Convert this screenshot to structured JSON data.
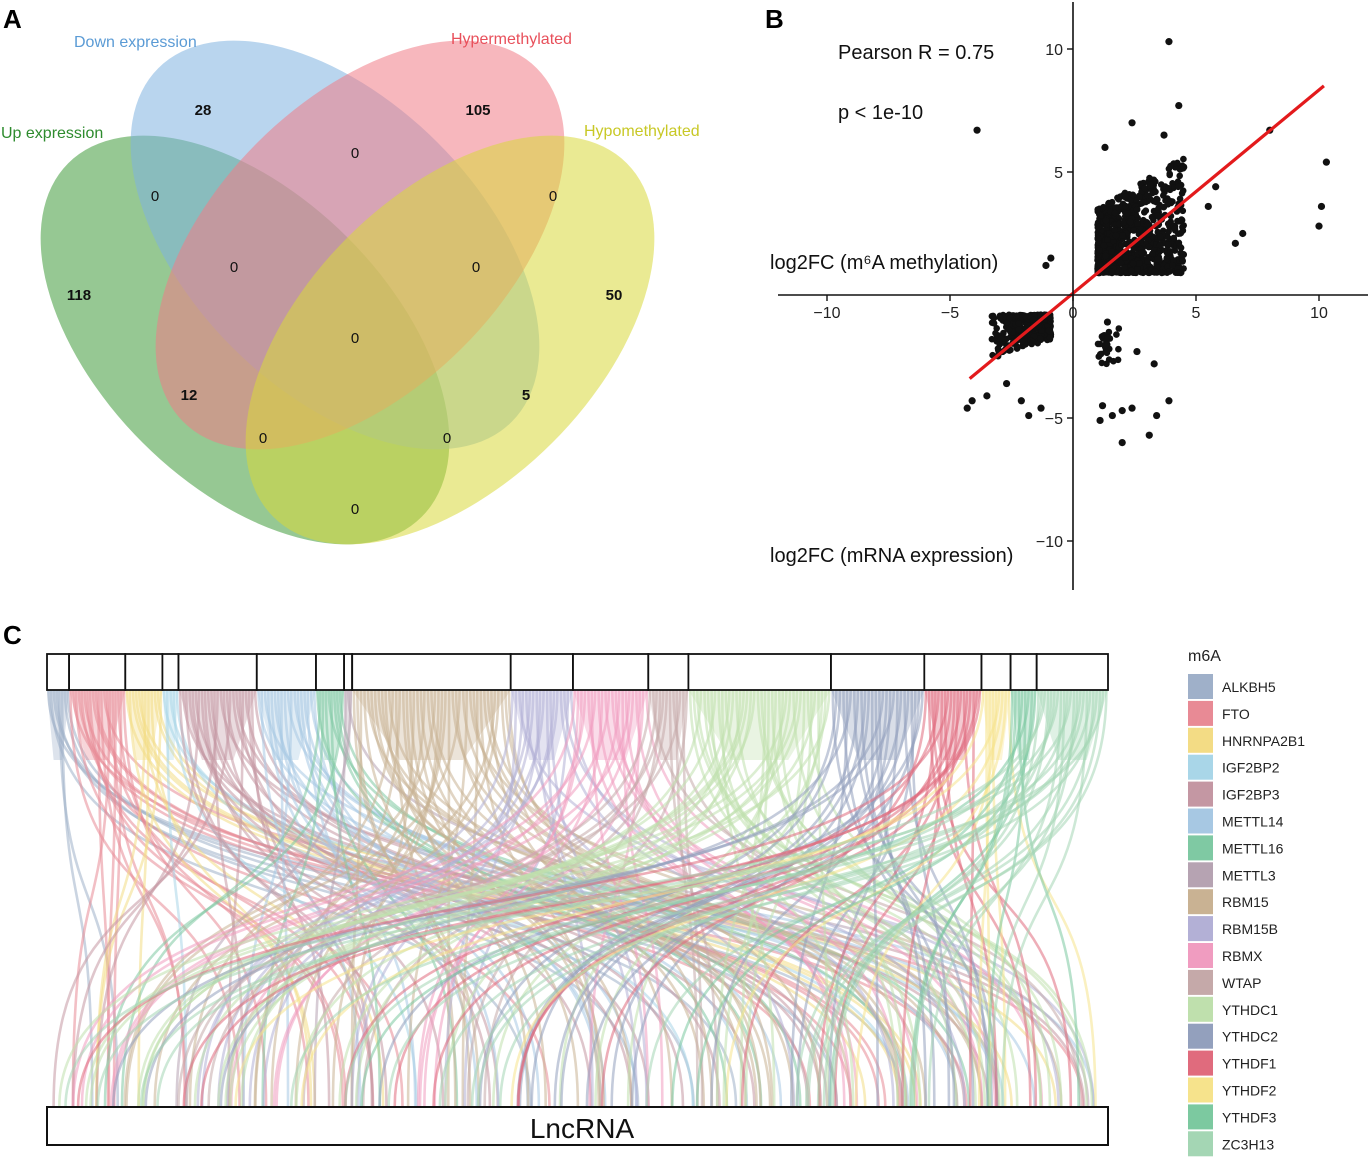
{
  "panels": {
    "a": "A",
    "b": "B",
    "c": "C"
  },
  "venn": {
    "sets": [
      {
        "name": "Up expression",
        "color": "#2e8b2e",
        "fill": "#3f9a3a"
      },
      {
        "name": "Down expression",
        "color": "#5b9bd5",
        "fill": "#7fb3e0"
      },
      {
        "name": "Hypermethylated",
        "color": "#e8505b",
        "fill": "#f07c86"
      },
      {
        "name": "Hypomethylated",
        "color": "#c8c826",
        "fill": "#d9d93a"
      }
    ],
    "regions": [
      {
        "key": "down_only",
        "value": "28",
        "bold": true
      },
      {
        "key": "hyper_only",
        "value": "105",
        "bold": true
      },
      {
        "key": "up_only",
        "value": "118",
        "bold": true
      },
      {
        "key": "hypo_only",
        "value": "50",
        "bold": true
      },
      {
        "key": "down_hyper",
        "value": "0",
        "bold": false
      },
      {
        "key": "up_down",
        "value": "0",
        "bold": false
      },
      {
        "key": "hyper_hypo",
        "value": "0",
        "bold": false
      },
      {
        "key": "up_down_hyper",
        "value": "0",
        "bold": false
      },
      {
        "key": "down_hyper_hypo",
        "value": "0",
        "bold": false
      },
      {
        "key": "all_four",
        "value": "0",
        "bold": false
      },
      {
        "key": "up_hyper",
        "value": "12",
        "bold": true
      },
      {
        "key": "down_hypo",
        "value": "5",
        "bold": true
      },
      {
        "key": "up_hyper_hypo",
        "value": "0",
        "bold": false
      },
      {
        "key": "up_down_hypo",
        "value": "0",
        "bold": false
      },
      {
        "key": "up_hypo",
        "value": "0",
        "bold": false
      }
    ]
  },
  "chart_data": [
    {
      "type": "scatter",
      "panel": "B",
      "title": "",
      "annotations": [
        "Pearson R = 0.75",
        "p < 1e-10"
      ],
      "xlabel": "log2FC (mRNA expression)",
      "ylabel": "log2FC (m⁶A methylation)",
      "xlim": [
        -12,
        12
      ],
      "ylim": [
        -12,
        12
      ],
      "xticks": [
        -10,
        -5,
        0,
        5,
        10
      ],
      "yticks": [
        10,
        5,
        -5,
        -10
      ],
      "xtick_labels": [
        "−10",
        "−5",
        "0",
        "5",
        "10"
      ],
      "ytick_labels": [
        "10",
        "5",
        "−5",
        "−10"
      ],
      "point_color": "#111111",
      "fit_color": "#e31a1c",
      "fit_line": {
        "x": [
          -4.2,
          10.2
        ],
        "y": [
          -3.4,
          8.5
        ]
      },
      "outliers": [
        {
          "x": 3.9,
          "y": 10.3
        },
        {
          "x": -3.9,
          "y": 6.7
        },
        {
          "x": 10.3,
          "y": 5.4
        },
        {
          "x": 10.1,
          "y": 3.6
        },
        {
          "x": 10.0,
          "y": 2.8
        },
        {
          "x": 8.0,
          "y": 6.7
        },
        {
          "x": 4.3,
          "y": 7.7
        },
        {
          "x": -0.9,
          "y": 1.5
        },
        {
          "x": -1.1,
          "y": 1.2
        },
        {
          "x": 1.2,
          "y": -4.5
        },
        {
          "x": 1.6,
          "y": -4.9
        },
        {
          "x": 2.0,
          "y": -4.7
        },
        {
          "x": 2.4,
          "y": -4.6
        },
        {
          "x": 3.1,
          "y": -5.7
        },
        {
          "x": 3.4,
          "y": -4.9
        },
        {
          "x": 3.9,
          "y": -4.3
        },
        {
          "x": 2.0,
          "y": -6.0
        },
        {
          "x": 1.1,
          "y": -5.1
        },
        {
          "x": 2.6,
          "y": -2.3
        },
        {
          "x": 3.3,
          "y": -2.8
        },
        {
          "x": 1.4,
          "y": -1.1
        },
        {
          "x": -4.1,
          "y": -4.3
        },
        {
          "x": -4.3,
          "y": -4.6
        },
        {
          "x": -3.5,
          "y": -4.1
        },
        {
          "x": -2.1,
          "y": -4.3
        },
        {
          "x": -1.8,
          "y": -4.9
        },
        {
          "x": -1.3,
          "y": -4.6
        },
        {
          "x": -2.7,
          "y": -3.6
        },
        {
          "x": 6.9,
          "y": 2.5
        },
        {
          "x": 5.8,
          "y": 4.4
        },
        {
          "x": 5.5,
          "y": 3.6
        },
        {
          "x": 4.5,
          "y": 5.2
        },
        {
          "x": 3.7,
          "y": 6.5
        },
        {
          "x": 2.4,
          "y": 7.0
        },
        {
          "x": 1.3,
          "y": 6.0
        },
        {
          "x": 6.6,
          "y": 2.1
        }
      ],
      "clusters": [
        {
          "count": 900,
          "x": [
            1.0,
            4.5
          ],
          "y": [
            0.9,
            5.6
          ],
          "seed": 11,
          "skew": 0.6
        },
        {
          "count": 260,
          "x": [
            -3.3,
            -0.9
          ],
          "y": [
            -2.6,
            -0.8
          ],
          "seed": 23,
          "skew": 0.3
        },
        {
          "count": 30,
          "x": [
            1.0,
            2.1
          ],
          "y": [
            -2.8,
            -1.0
          ],
          "seed": 37,
          "skew": 0.0
        }
      ]
    },
    {
      "type": "alluvial",
      "panel": "C",
      "bottom_label": "LncRNA",
      "legend_title": "m6A",
      "categories": [
        "ALKBH5",
        "FTO",
        "HNRNPA2B1",
        "IGF2BP2",
        "IGF2BP3",
        "METTL14",
        "METTL16",
        "METTL3",
        "RBM15",
        "RBM15B",
        "RBMX",
        "WTAP",
        "YTHDC1",
        "YTHDC2",
        "YTHDF1",
        "YTHDF2",
        "YTHDF3",
        "ZC3H13"
      ],
      "colors": [
        "#9fb0c9",
        "#e88a95",
        "#f3dc85",
        "#a9d6e8",
        "#c497a3",
        "#a7c8e3",
        "#7fc9a3",
        "#b6a3b2",
        "#c9b293",
        "#b3b0d6",
        "#f09cc0",
        "#c5a9a9",
        "#bfe0ad",
        "#93a0bd",
        "#e06b7d",
        "#f6e38c",
        "#7cc9a0",
        "#a4d6b4"
      ],
      "top_order": [
        0,
        1,
        2,
        3,
        4,
        5,
        6,
        7,
        8,
        9,
        10,
        11,
        12,
        13,
        14,
        15,
        16,
        17
      ],
      "top_widths": [
        22,
        56,
        37,
        16,
        78,
        59,
        28,
        8,
        158,
        62,
        75,
        40,
        142,
        93,
        57,
        29,
        26,
        71
      ],
      "links": [
        8,
        20,
        12,
        5,
        25,
        18,
        10,
        3,
        45,
        18,
        22,
        12,
        40,
        26,
        18,
        9,
        8,
        22
      ]
    }
  ]
}
